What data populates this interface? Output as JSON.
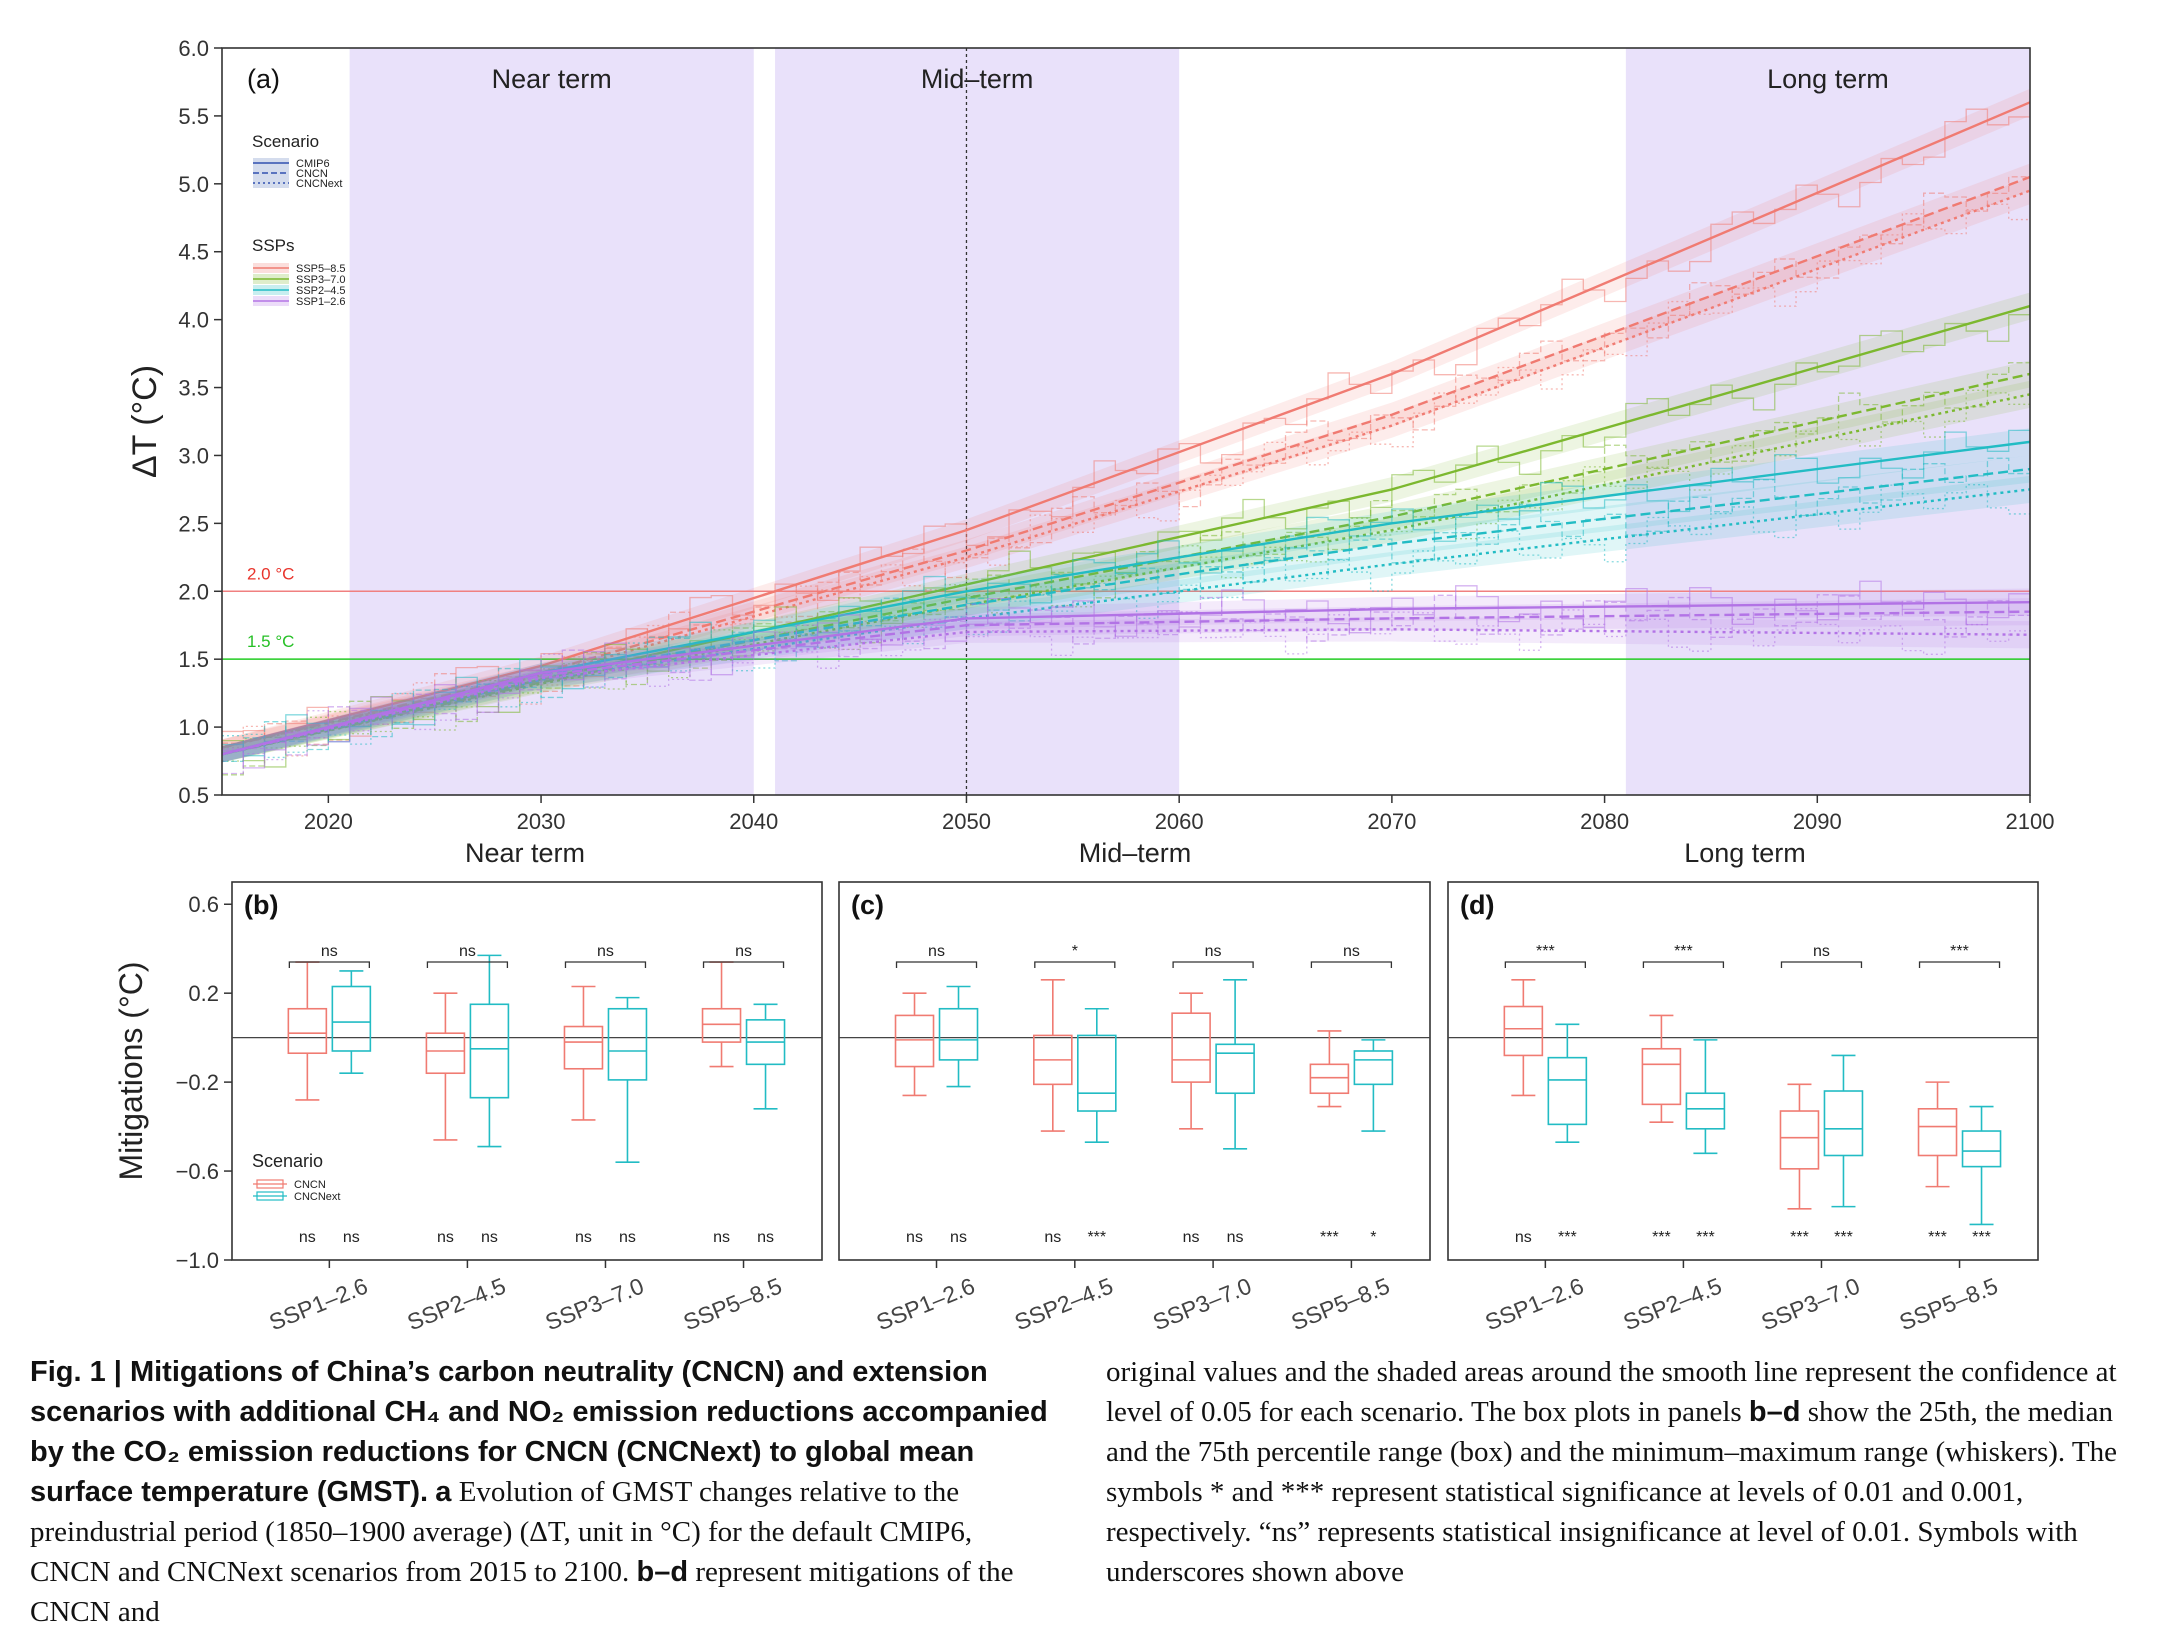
{
  "chart_data": [
    {
      "panel": "(a)",
      "type": "line",
      "ylabel": "ΔT (°C)",
      "xlabel": "",
      "xlim": [
        2015,
        2100
      ],
      "ylim": [
        0.5,
        6.0
      ],
      "xticks": [
        "2020",
        "2030",
        "2040",
        "2050",
        "2060",
        "2070",
        "2080",
        "2090",
        "2100"
      ],
      "yticks": [
        "0.5",
        "1.0",
        "1.5",
        "2.0",
        "2.5",
        "3.0",
        "3.5",
        "4.0",
        "4.5",
        "5.0",
        "5.5",
        "6.0"
      ],
      "periods": [
        {
          "label": "Near term",
          "start": 2021,
          "end": 2040
        },
        {
          "label": "Mid–term",
          "start": 2041,
          "end": 2060
        },
        {
          "label": "Long term",
          "start": 2081,
          "end": 2100
        }
      ],
      "period_axis_labels": [
        "Near term",
        "Mid–term",
        "Long term"
      ],
      "vline_x": 2050,
      "hlines": [
        {
          "label": "2.0 °C",
          "y": 2.0,
          "color": "#f08080"
        },
        {
          "label": "1.5 °C",
          "y": 1.5,
          "color": "#22cc22"
        }
      ],
      "legend_scenario": {
        "title": "Scenario",
        "items": [
          "CMIP6",
          "CNCN",
          "CNCNext"
        ]
      },
      "legend_ssp": {
        "title": "SSPs",
        "items": [
          "SSP5–8.5",
          "SSP3–7.0",
          "SSP2–4.5",
          "SSP1–2.6"
        ]
      },
      "colors": {
        "SSP5–8.5": "#f07b72",
        "SSP3–7.0": "#7cb82f",
        "SSP2–4.5": "#22bcc4",
        "SSP1–2.6": "#b374e6"
      },
      "series": [
        {
          "ssp": "SSP5–8.5",
          "scenario": "CMIP6",
          "x": [
            2015,
            2030,
            2050,
            2070,
            2100
          ],
          "y": [
            0.85,
            1.45,
            2.45,
            3.6,
            5.6
          ]
        },
        {
          "ssp": "SSP5–8.5",
          "scenario": "CNCN",
          "x": [
            2015,
            2030,
            2050,
            2070,
            2100
          ],
          "y": [
            0.85,
            1.4,
            2.3,
            3.3,
            5.05
          ]
        },
        {
          "ssp": "SSP5–8.5",
          "scenario": "CNCNext",
          "x": [
            2015,
            2030,
            2050,
            2070,
            2100
          ],
          "y": [
            0.85,
            1.38,
            2.25,
            3.22,
            4.95
          ]
        },
        {
          "ssp": "SSP3–7.0",
          "scenario": "CMIP6",
          "x": [
            2015,
            2030,
            2050,
            2070,
            2100
          ],
          "y": [
            0.8,
            1.35,
            2.05,
            2.75,
            4.1
          ]
        },
        {
          "ssp": "SSP3–7.0",
          "scenario": "CNCN",
          "x": [
            2015,
            2030,
            2050,
            2070,
            2100
          ],
          "y": [
            0.8,
            1.33,
            1.95,
            2.55,
            3.6
          ]
        },
        {
          "ssp": "SSP3–7.0",
          "scenario": "CNCNext",
          "x": [
            2015,
            2030,
            2050,
            2070,
            2100
          ],
          "y": [
            0.8,
            1.32,
            1.9,
            2.45,
            3.45
          ]
        },
        {
          "ssp": "SSP2–4.5",
          "scenario": "CMIP6",
          "x": [
            2015,
            2030,
            2050,
            2070,
            2100
          ],
          "y": [
            0.8,
            1.4,
            2.0,
            2.5,
            3.1
          ]
        },
        {
          "ssp": "SSP2–4.5",
          "scenario": "CNCN",
          "x": [
            2015,
            2030,
            2050,
            2070,
            2100
          ],
          "y": [
            0.8,
            1.38,
            1.9,
            2.35,
            2.9
          ]
        },
        {
          "ssp": "SSP2–4.5",
          "scenario": "CNCNext",
          "x": [
            2015,
            2030,
            2050,
            2070,
            2100
          ],
          "y": [
            0.8,
            1.35,
            1.8,
            2.2,
            2.75
          ]
        },
        {
          "ssp": "SSP1–2.6",
          "scenario": "CMIP6",
          "x": [
            2015,
            2030,
            2050,
            2070,
            2100
          ],
          "y": [
            0.8,
            1.4,
            1.8,
            1.87,
            1.92
          ]
        },
        {
          "ssp": "SSP1–2.6",
          "scenario": "CNCN",
          "x": [
            2015,
            2030,
            2050,
            2070,
            2100
          ],
          "y": [
            0.8,
            1.38,
            1.75,
            1.8,
            1.85
          ]
        },
        {
          "ssp": "SSP1–2.6",
          "scenario": "CNCNext",
          "x": [
            2015,
            2030,
            2050,
            2070,
            2100
          ],
          "y": [
            0.8,
            1.36,
            1.7,
            1.72,
            1.68
          ]
        }
      ]
    },
    {
      "panel": "(b)",
      "period": "Near term",
      "type": "box",
      "ylabel": "Mitigations (°C)",
      "ylim": [
        -1.0,
        0.7
      ],
      "yticks": [
        "0.6",
        "0.2",
        "−0.2",
        "−0.6",
        "−1.0"
      ],
      "categories": [
        "SSP1–2.6",
        "SSP2–4.5",
        "SSP3–7.0",
        "SSP5–8.5"
      ],
      "legend": {
        "title": "Scenario",
        "items": [
          "CNCN",
          "CNCNext"
        ]
      },
      "top_signif": [
        "ns",
        "ns",
        "ns",
        "ns"
      ],
      "bottom_signif": [
        [
          "ns",
          "ns"
        ],
        [
          "ns",
          "ns"
        ],
        [
          "ns",
          "ns"
        ],
        [
          "ns",
          "ns"
        ]
      ],
      "boxes": [
        [
          {
            "min": -0.28,
            "q1": -0.07,
            "med": 0.02,
            "q3": 0.13,
            "max": 0.34
          },
          {
            "min": -0.16,
            "q1": -0.06,
            "med": 0.07,
            "q3": 0.23,
            "max": 0.3
          }
        ],
        [
          {
            "min": -0.46,
            "q1": -0.16,
            "med": -0.06,
            "q3": 0.02,
            "max": 0.2
          },
          {
            "min": -0.49,
            "q1": -0.27,
            "med": -0.05,
            "q3": 0.15,
            "max": 0.37
          }
        ],
        [
          {
            "min": -0.37,
            "q1": -0.14,
            "med": -0.02,
            "q3": 0.05,
            "max": 0.23
          },
          {
            "min": -0.56,
            "q1": -0.19,
            "med": -0.06,
            "q3": 0.13,
            "max": 0.18
          }
        ],
        [
          {
            "min": -0.13,
            "q1": -0.02,
            "med": 0.06,
            "q3": 0.13,
            "max": 0.34
          },
          {
            "min": -0.32,
            "q1": -0.12,
            "med": -0.02,
            "q3": 0.08,
            "max": 0.15
          }
        ]
      ]
    },
    {
      "panel": "(c)",
      "period": "Mid–term",
      "type": "box",
      "ylim": [
        -1.0,
        0.7
      ],
      "categories": [
        "SSP1–2.6",
        "SSP2–4.5",
        "SSP3–7.0",
        "SSP5–8.5"
      ],
      "top_signif": [
        "ns",
        "*",
        "ns",
        "ns"
      ],
      "bottom_signif": [
        [
          "ns",
          "ns"
        ],
        [
          "ns",
          "***"
        ],
        [
          "ns",
          "ns"
        ],
        [
          "***",
          "*"
        ]
      ],
      "boxes": [
        [
          {
            "min": -0.26,
            "q1": -0.13,
            "med": -0.01,
            "q3": 0.1,
            "max": 0.2
          },
          {
            "min": -0.22,
            "q1": -0.1,
            "med": -0.01,
            "q3": 0.13,
            "max": 0.23
          }
        ],
        [
          {
            "min": -0.42,
            "q1": -0.21,
            "med": -0.1,
            "q3": 0.01,
            "max": 0.26
          },
          {
            "min": -0.47,
            "q1": -0.33,
            "med": -0.25,
            "q3": 0.01,
            "max": 0.13
          }
        ],
        [
          {
            "min": -0.41,
            "q1": -0.2,
            "med": -0.1,
            "q3": 0.11,
            "max": 0.2
          },
          {
            "min": -0.5,
            "q1": -0.25,
            "med": -0.07,
            "q3": -0.03,
            "max": 0.26
          }
        ],
        [
          {
            "min": -0.31,
            "q1": -0.25,
            "med": -0.18,
            "q3": -0.12,
            "max": 0.03
          },
          {
            "min": -0.42,
            "q1": -0.21,
            "med": -0.1,
            "q3": -0.06,
            "max": -0.01
          }
        ]
      ]
    },
    {
      "panel": "(d)",
      "period": "Long term",
      "type": "box",
      "ylim": [
        -1.0,
        0.7
      ],
      "categories": [
        "SSP1–2.6",
        "SSP2–4.5",
        "SSP3–7.0",
        "SSP5–8.5"
      ],
      "top_signif": [
        "***",
        "***",
        "ns",
        "***"
      ],
      "bottom_signif": [
        [
          "ns",
          "***"
        ],
        [
          "***",
          "***"
        ],
        [
          "***",
          "***"
        ],
        [
          "***",
          "***"
        ]
      ],
      "boxes": [
        [
          {
            "min": -0.26,
            "q1": -0.08,
            "med": 0.04,
            "q3": 0.14,
            "max": 0.26
          },
          {
            "min": -0.47,
            "q1": -0.39,
            "med": -0.19,
            "q3": -0.09,
            "max": 0.06
          }
        ],
        [
          {
            "min": -0.38,
            "q1": -0.3,
            "med": -0.12,
            "q3": -0.05,
            "max": 0.1
          },
          {
            "min": -0.52,
            "q1": -0.41,
            "med": -0.32,
            "q3": -0.25,
            "max": -0.01
          }
        ],
        [
          {
            "min": -0.77,
            "q1": -0.59,
            "med": -0.45,
            "q3": -0.33,
            "max": -0.21
          },
          {
            "min": -0.76,
            "q1": -0.53,
            "med": -0.41,
            "q3": -0.24,
            "max": -0.08
          }
        ],
        [
          {
            "min": -0.67,
            "q1": -0.53,
            "med": -0.4,
            "q3": -0.32,
            "max": -0.2
          },
          {
            "min": -0.84,
            "q1": -0.58,
            "med": -0.51,
            "q3": -0.42,
            "max": -0.31
          }
        ]
      ]
    }
  ],
  "caption": {
    "col1_bold": "Fig. 1 | Mitigations of China’s carbon neutrality (CNCN) and extension scenarios with additional CH₄ and NO₂ emission reductions accompanied by the CO₂ emission reductions for CNCN (CNCNext) to global mean surface temperature (GMST).",
    "col1_a": "a",
    "col1_text": "Evolution of GMST changes relative to the preindustrial period (1850–1900 average) (ΔT, unit in °C) for the default CMIP6, CNCN and CNCNext scenarios from 2015 to 2100.",
    "col1_bd": "b–d",
    "col1_tail": "represent mitigations of the CNCN and",
    "col2_text1": "original values and the shaded areas around the smooth line represent the confidence at level of 0.05 for each scenario. The box plots in panels",
    "col2_bd": "b–d",
    "col2_text2": "show the 25th, the median and the 75th percentile range (box) and the minimum–maximum range (whiskers). The symbols * and *** represent statistical significance at levels of 0.01 and 0.001, respectively. “ns” represents statistical insignificance at level of 0.01. Symbols with underscores shown above"
  }
}
